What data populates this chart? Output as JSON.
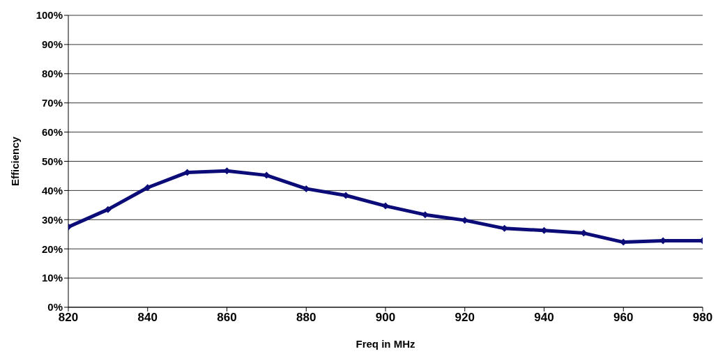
{
  "chart_data": {
    "type": "line",
    "xlabel": "Freq in MHz",
    "ylabel": "Efficiency",
    "x": [
      820,
      830,
      840,
      850,
      860,
      870,
      880,
      890,
      900,
      910,
      920,
      930,
      940,
      950,
      960,
      970,
      980
    ],
    "series": [
      {
        "color": "#0c0c78",
        "values": [
          27.5,
          33.5,
          41,
          46.2,
          46.7,
          45.2,
          40.6,
          38.3,
          34.7,
          31.7,
          29.8,
          27,
          26.3,
          25.4,
          22.3,
          22.8,
          22.8
        ]
      }
    ],
    "xlim": [
      820,
      980
    ],
    "xticks": [
      820,
      840,
      860,
      880,
      900,
      920,
      940,
      960,
      980
    ],
    "ylim": [
      0,
      100
    ],
    "yticks": [
      {
        "value": 0,
        "label": "0%"
      },
      {
        "value": 10,
        "label": "10%"
      },
      {
        "value": 20,
        "label": "20%"
      },
      {
        "value": 30,
        "label": "30%"
      },
      {
        "value": 40,
        "label": "40%"
      },
      {
        "value": 50,
        "label": "50%"
      },
      {
        "value": 60,
        "label": "60%"
      },
      {
        "value": 70,
        "label": "70%"
      },
      {
        "value": 80,
        "label": "80%"
      },
      {
        "value": 90,
        "label": "90%"
      },
      {
        "value": 100,
        "label": "100%"
      }
    ],
    "grid": "y",
    "legend": false,
    "marker": "diamond",
    "line_style": "solid"
  }
}
